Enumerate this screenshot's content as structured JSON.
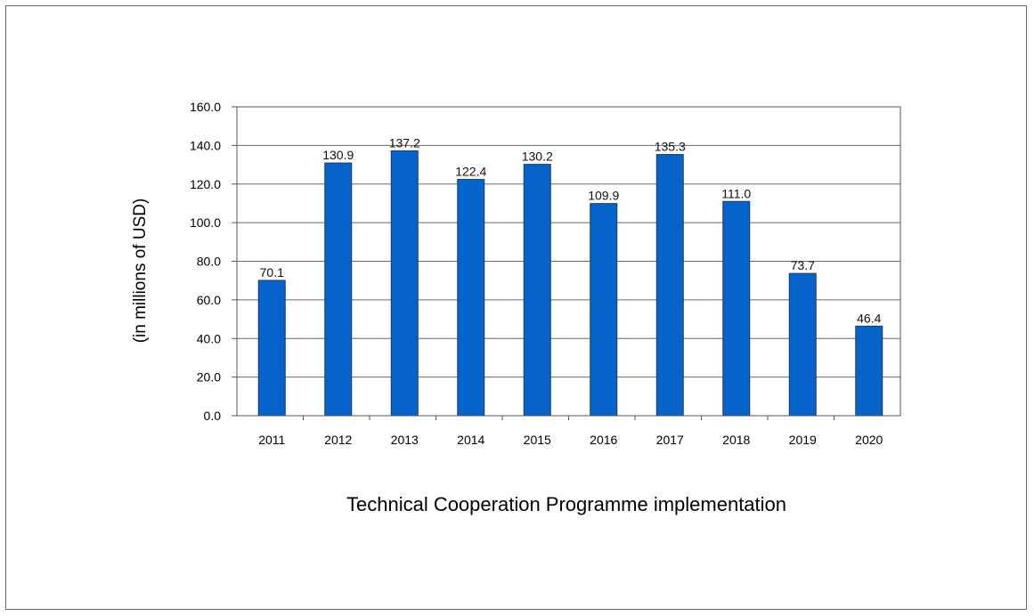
{
  "chart_data": {
    "type": "bar",
    "title": "",
    "xlabel": "Technical Cooperation Programme implementation",
    "ylabel": "(in millions of USD)",
    "ylim": [
      0,
      160
    ],
    "yticks": [
      "0.0",
      "20.0",
      "40.0",
      "60.0",
      "80.0",
      "100.0",
      "120.0",
      "140.0",
      "160.0"
    ],
    "categories": [
      "2011",
      "2012",
      "2013",
      "2014",
      "2015",
      "2016",
      "2017",
      "2018",
      "2019",
      "2020"
    ],
    "values": [
      70.1,
      130.9,
      137.2,
      122.4,
      130.2,
      109.9,
      135.3,
      111.0,
      73.7,
      46.4
    ],
    "data_labels": [
      "70.1",
      "130.9",
      "137.2",
      "122.4",
      "130.2",
      "109.9",
      "135.3",
      "111.0",
      "73.7",
      "46.4"
    ],
    "grid": true,
    "legend": "none",
    "bar_color": "#0563c9"
  }
}
